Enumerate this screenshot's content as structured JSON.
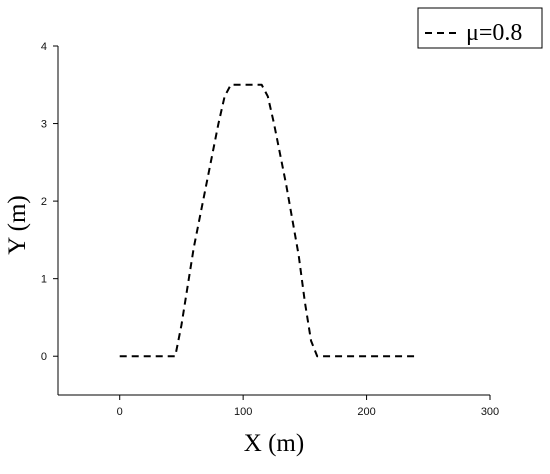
{
  "chart_data": {
    "type": "line",
    "title": "",
    "xlabel": "X (m)",
    "ylabel": "Y (m)",
    "xlim": [
      -50,
      300
    ],
    "ylim": [
      -0.5,
      4
    ],
    "x_ticks": [
      0,
      100,
      200,
      300
    ],
    "y_ticks": [
      0,
      1,
      2,
      3,
      4
    ],
    "x_tick_labels": [
      "0",
      "100",
      "200",
      "300"
    ],
    "y_tick_labels": [
      "0",
      "1",
      "2",
      "3",
      "4"
    ],
    "grid": false,
    "legend": {
      "position": "top-right",
      "entries": [
        {
          "label": "μ=0.8",
          "line_style": "dashed",
          "color": "#000000"
        }
      ]
    },
    "series": [
      {
        "name": "μ=0.8",
        "color": "#000000",
        "line_style": "dashed",
        "points": [
          [
            0,
            0
          ],
          [
            45,
            0
          ],
          [
            50,
            0.4
          ],
          [
            60,
            1.4
          ],
          [
            70,
            2.2
          ],
          [
            80,
            3.0
          ],
          [
            85,
            3.35
          ],
          [
            90,
            3.5
          ],
          [
            115,
            3.5
          ],
          [
            120,
            3.35
          ],
          [
            125,
            3.0
          ],
          [
            135,
            2.2
          ],
          [
            145,
            1.3
          ],
          [
            150,
            0.7
          ],
          [
            155,
            0.2
          ],
          [
            160,
            0
          ],
          [
            240,
            0
          ]
        ]
      }
    ]
  }
}
